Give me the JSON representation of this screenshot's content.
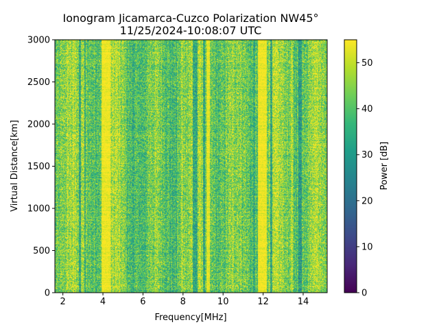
{
  "chart_data": {
    "type": "heatmap",
    "title": "Ionogram Jicamarca-Cuzco Polarization NW45°",
    "subtitle": "11/25/2024-10:08:07 UTC",
    "xlabel": "Frequency[MHz]",
    "ylabel": "Virtual Distance[km]",
    "xlim": [
      1.6,
      15.2
    ],
    "ylim": [
      0,
      3000
    ],
    "x_ticks": [
      2,
      4,
      6,
      8,
      10,
      12,
      14
    ],
    "y_ticks": [
      0,
      500,
      1000,
      1500,
      2000,
      2500,
      3000
    ],
    "colorbar": {
      "label": "Power [dB]",
      "range": [
        0,
        55
      ],
      "ticks": [
        0,
        10,
        20,
        30,
        40,
        50
      ],
      "colormap": "viridis"
    },
    "bright_bands_mhz": [
      {
        "center": 2.95,
        "width": 0.08,
        "level": 48
      },
      {
        "center": 4.15,
        "width": 0.45,
        "level": 54
      },
      {
        "center": 4.65,
        "width": 0.1,
        "level": 50
      },
      {
        "center": 5.85,
        "width": 0.1,
        "level": 46
      },
      {
        "center": 7.95,
        "width": 0.12,
        "level": 48
      },
      {
        "center": 8.85,
        "width": 0.1,
        "level": 50
      },
      {
        "center": 9.25,
        "width": 0.15,
        "level": 53
      },
      {
        "center": 11.95,
        "width": 0.45,
        "level": 54
      },
      {
        "center": 13.45,
        "width": 0.1,
        "level": 50
      },
      {
        "center": 14.6,
        "width": 0.1,
        "level": 50
      }
    ],
    "dim_bands_mhz": [
      {
        "center": 2.85,
        "width": 0.08,
        "level": 32
      },
      {
        "center": 3.1,
        "width": 0.08,
        "level": 34
      },
      {
        "center": 6.0,
        "width": 0.35,
        "level": 38
      },
      {
        "center": 8.6,
        "width": 0.25,
        "level": 33
      },
      {
        "center": 9.05,
        "width": 0.1,
        "level": 32
      },
      {
        "center": 11.55,
        "width": 0.1,
        "level": 34
      },
      {
        "center": 12.4,
        "width": 0.12,
        "level": 32
      },
      {
        "center": 13.85,
        "width": 0.15,
        "level": 30
      }
    ]
  }
}
